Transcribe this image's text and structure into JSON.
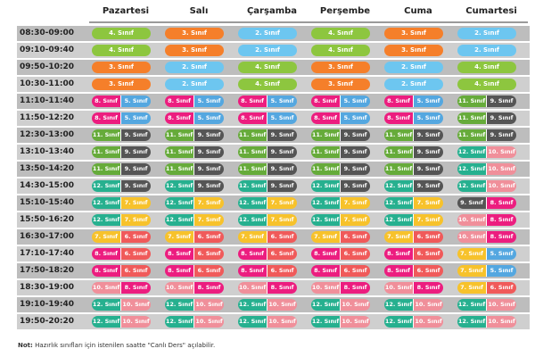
{
  "days": [
    "Pazartesi",
    "Salı",
    "Çarşamba",
    "Perşembe",
    "Cuma",
    "Cumartesi"
  ],
  "colors": {
    "4": "#8dc63f",
    "3": "#f57f2a",
    "2": "#6dc6f0",
    "8": "#ec1d7f",
    "5": "#54a7e0",
    "11": "#66ab3a",
    "9": "#555555",
    "12": "#26b08f",
    "10": "#f08f9a",
    "7": "#f7c22b",
    "6": "#f05a5a"
  },
  "rows": [
    {
      "time": "08:30-09:00",
      "cells": [
        [
          "4. Sınıf"
        ],
        [
          "3. Sınıf"
        ],
        [
          "2. Sınıf"
        ],
        [
          "4. Sınıf"
        ],
        [
          "3. Sınıf"
        ],
        [
          "2. Sınıf"
        ]
      ]
    },
    {
      "time": "09:10-09:40",
      "cells": [
        [
          "4. Sınıf"
        ],
        [
          "3. Sınıf"
        ],
        [
          "2. Sınıf"
        ],
        [
          "4. Sınıf"
        ],
        [
          "3. Sınıf"
        ],
        [
          "2. Sınıf"
        ]
      ]
    },
    {
      "time": "09:50-10:20",
      "cells": [
        [
          "3. Sınıf"
        ],
        [
          "2. Sınıf"
        ],
        [
          "4. Sınıf"
        ],
        [
          "3. Sınıf"
        ],
        [
          "2. Sınıf"
        ],
        [
          "4. Sınıf"
        ]
      ]
    },
    {
      "time": "10:30-11:00",
      "cells": [
        [
          "3. Sınıf"
        ],
        [
          "2. Sınıf"
        ],
        [
          "4. Sınıf"
        ],
        [
          "3. Sınıf"
        ],
        [
          "2. Sınıf"
        ],
        [
          "4. Sınıf"
        ]
      ]
    },
    {
      "time": "11:10-11:40",
      "cells": [
        [
          "8. Sınıf",
          "5. Sınıf"
        ],
        [
          "8. Sınıf",
          "5. Sınıf"
        ],
        [
          "8. Sınıf",
          "5. Sınıf"
        ],
        [
          "8. Sınıf",
          "5. Sınıf"
        ],
        [
          "8. Sınıf",
          "5. Sınıf"
        ],
        [
          "11. Sınıf",
          "9. Sınıf"
        ]
      ]
    },
    {
      "time": "11:50-12:20",
      "cells": [
        [
          "8. Sınıf",
          "5. Sınıf"
        ],
        [
          "8. Sınıf",
          "5. Sınıf"
        ],
        [
          "8. Sınıf",
          "5. Sınıf"
        ],
        [
          "8. Sınıf",
          "5. Sınıf"
        ],
        [
          "8. Sınıf",
          "5. Sınıf"
        ],
        [
          "11. Sınıf",
          "9. Sınıf"
        ]
      ]
    },
    {
      "time": "12:30-13:00",
      "cells": [
        [
          "11. Sınıf",
          "9. Sınıf"
        ],
        [
          "11. Sınıf",
          "9. Sınıf"
        ],
        [
          "11. Sınıf",
          "9. Sınıf"
        ],
        [
          "11. Sınıf",
          "9. Sınıf"
        ],
        [
          "11. Sınıf",
          "9. Sınıf"
        ],
        [
          "11. Sınıf",
          "9. Sınıf"
        ]
      ]
    },
    {
      "time": "13:10-13:40",
      "cells": [
        [
          "11. Sınıf",
          "9. Sınıf"
        ],
        [
          "11. Sınıf",
          "9. Sınıf"
        ],
        [
          "11. Sınıf",
          "9. Sınıf"
        ],
        [
          "11. Sınıf",
          "9. Sınıf"
        ],
        [
          "11. Sınıf",
          "9. Sınıf"
        ],
        [
          "12. Sınıf",
          "10. Sınıf"
        ]
      ]
    },
    {
      "time": "13:50-14:20",
      "cells": [
        [
          "11. Sınıf",
          "9. Sınıf"
        ],
        [
          "11. Sınıf",
          "9. Sınıf"
        ],
        [
          "11. Sınıf",
          "9. Sınıf"
        ],
        [
          "11. Sınıf",
          "9. Sınıf"
        ],
        [
          "11. Sınıf",
          "9. Sınıf"
        ],
        [
          "12. Sınıf",
          "10. Sınıf"
        ]
      ]
    },
    {
      "time": "14:30-15:00",
      "cells": [
        [
          "12. Sınıf",
          "9. Sınıf"
        ],
        [
          "12. Sınıf",
          "9. Sınıf"
        ],
        [
          "12. Sınıf",
          "9. Sınıf"
        ],
        [
          "12. Sınıf",
          "9. Sınıf"
        ],
        [
          "12. Sınıf",
          "9. Sınıf"
        ],
        [
          "12. Sınıf",
          "10. Sınıf"
        ]
      ]
    },
    {
      "time": "15:10-15:40",
      "cells": [
        [
          "12. Sınıf",
          "7. Sınıf"
        ],
        [
          "12. Sınıf",
          "7. Sınıf"
        ],
        [
          "12. Sınıf",
          "7. Sınıf"
        ],
        [
          "12. Sınıf",
          "7. Sınıf"
        ],
        [
          "12. Sınıf",
          "7. Sınıf"
        ],
        [
          "9. Sınıf",
          "8. Sınıf"
        ]
      ]
    },
    {
      "time": "15:50-16:20",
      "cells": [
        [
          "12. Sınıf",
          "7. Sınıf"
        ],
        [
          "12. Sınıf",
          "7. Sınıf"
        ],
        [
          "12. Sınıf",
          "7. Sınıf"
        ],
        [
          "12. Sınıf",
          "7. Sınıf"
        ],
        [
          "12. Sınıf",
          "7. Sınıf"
        ],
        [
          "10. Sınıf",
          "8. Sınıf"
        ]
      ]
    },
    {
      "time": "16:30-17:00",
      "cells": [
        [
          "7. Sınıf",
          "6. Sınıf"
        ],
        [
          "7. Sınıf",
          "6. Sınıf"
        ],
        [
          "7. Sınıf",
          "6. Sınıf"
        ],
        [
          "7. Sınıf",
          "6. Sınıf"
        ],
        [
          "7. Sınıf",
          "6. Sınıf"
        ],
        [
          "10. Sınıf",
          "8. Sınıf"
        ]
      ]
    },
    {
      "time": "17:10-17:40",
      "cells": [
        [
          "8. Sınıf",
          "6. Sınıf"
        ],
        [
          "8. Sınıf",
          "6. Sınıf"
        ],
        [
          "8. Sınıf",
          "6. Sınıf"
        ],
        [
          "8. Sınıf",
          "6. Sınıf"
        ],
        [
          "8. Sınıf",
          "6. Sınıf"
        ],
        [
          "7. Sınıf",
          "5. Sınıf"
        ]
      ]
    },
    {
      "time": "17:50-18:20",
      "cells": [
        [
          "8. Sınıf",
          "6. Sınıf"
        ],
        [
          "8. Sınıf",
          "6. Sınıf"
        ],
        [
          "8. Sınıf",
          "6. Sınıf"
        ],
        [
          "8. Sınıf",
          "6. Sınıf"
        ],
        [
          "8. Sınıf",
          "6. Sınıf"
        ],
        [
          "7. Sınıf",
          "5. Sınıf"
        ]
      ]
    },
    {
      "time": "18:30-19:00",
      "cells": [
        [
          "10. Sınıf",
          "8. Sınıf"
        ],
        [
          "10. Sınıf",
          "8. Sınıf"
        ],
        [
          "10. Sınıf",
          "8. Sınıf"
        ],
        [
          "10. Sınıf",
          "8. Sınıf"
        ],
        [
          "10. Sınıf",
          "8. Sınıf"
        ],
        [
          "7. Sınıf",
          "6. Sınıf"
        ]
      ]
    },
    {
      "time": "19:10-19:40",
      "cells": [
        [
          "12. Sınıf",
          "10. Sınıf"
        ],
        [
          "12. Sınıf",
          "10. Sınıf"
        ],
        [
          "12. Sınıf",
          "10. Sınıf"
        ],
        [
          "12. Sınıf",
          "10. Sınıf"
        ],
        [
          "12. Sınıf",
          "10. Sınıf"
        ],
        [
          "12. Sınıf",
          "10. Sınıf"
        ]
      ]
    },
    {
      "time": "19:50-20:20",
      "cells": [
        [
          "12. Sınıf",
          "10. Sınıf"
        ],
        [
          "12. Sınıf",
          "10. Sınıf"
        ],
        [
          "12. Sınıf",
          "10. Sınıf"
        ],
        [
          "12. Sınıf",
          "10. Sınıf"
        ],
        [
          "12. Sınıf",
          "10. Sınıf"
        ],
        [
          "12. Sınıf",
          "10. Sınıf"
        ]
      ]
    }
  ],
  "note": {
    "label": "Not:",
    "text": "Hazırlık sınıfları için istenilen saatte \"Canlı Ders\" açılabilir."
  }
}
